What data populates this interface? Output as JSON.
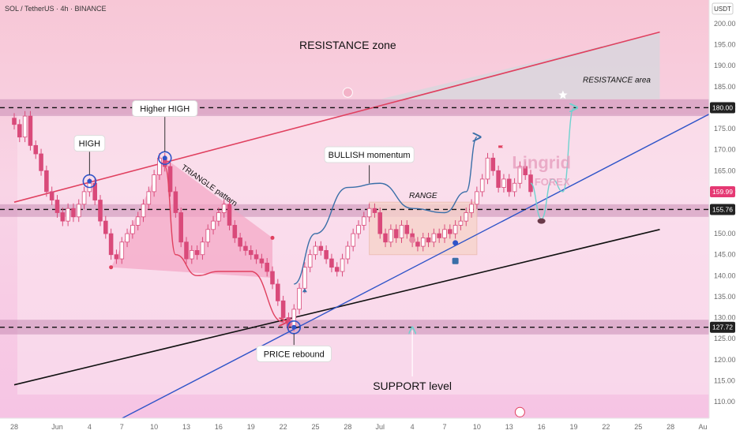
{
  "header": {
    "symbol_line": "SOL / TetherUS · 4h · BINANCE"
  },
  "currency_badge": "USDT",
  "colors": {
    "up_candle": "#d94a7a",
    "down_candle": "#d94a7a",
    "resistance_band": "#c98cb4",
    "support_band": "#c98cb4",
    "channel_upper": "#e0405f",
    "channel_lower": "#111111",
    "trend_line": "#2f54c8",
    "triangle_fill": "#f3a5c5",
    "projection": "#3a6fa8",
    "alt_projection": "#6fd2cf",
    "price_badge": "#e53973",
    "level_badge": "#222222"
  },
  "chart_data": {
    "type": "candlestick",
    "title": "",
    "y_axis": {
      "label": "USDT",
      "range": [
        105,
        202
      ],
      "ticks": [
        110,
        115,
        120,
        125,
        130,
        135,
        140,
        145,
        150,
        155,
        160,
        165,
        170,
        175,
        180,
        185,
        190,
        195,
        200
      ]
    },
    "x_axis": {
      "range": [
        "2025-05-28",
        "2025-08-01"
      ],
      "ticks": [
        {
          "date": "2025-05-28",
          "label": "28"
        },
        {
          "date": "2025-06-01",
          "label": "Jun"
        },
        {
          "date": "2025-06-04",
          "label": "4"
        },
        {
          "date": "2025-06-07",
          "label": "7"
        },
        {
          "date": "2025-06-10",
          "label": "10"
        },
        {
          "date": "2025-06-13",
          "label": "13"
        },
        {
          "date": "2025-06-16",
          "label": "16"
        },
        {
          "date": "2025-06-19",
          "label": "19"
        },
        {
          "date": "2025-06-22",
          "label": "22"
        },
        {
          "date": "2025-06-25",
          "label": "25"
        },
        {
          "date": "2025-06-28",
          "label": "28"
        },
        {
          "date": "2025-07-01",
          "label": "Jul"
        },
        {
          "date": "2025-07-04",
          "label": "4"
        },
        {
          "date": "2025-07-07",
          "label": "7"
        },
        {
          "date": "2025-07-10",
          "label": "10"
        },
        {
          "date": "2025-07-13",
          "label": "13"
        },
        {
          "date": "2025-07-16",
          "label": "16"
        },
        {
          "date": "2025-07-19",
          "label": "19"
        },
        {
          "date": "2025-07-22",
          "label": "22"
        },
        {
          "date": "2025-07-25",
          "label": "25"
        },
        {
          "date": "2025-07-28",
          "label": "28"
        },
        {
          "date": "2025-07-31",
          "label": "Au"
        }
      ]
    },
    "price_series": [
      {
        "date": "2025-05-28",
        "close": 176
      },
      {
        "date": "2025-05-28T12:00",
        "close": 173
      },
      {
        "date": "2025-05-29",
        "close": 178
      },
      {
        "date": "2025-05-29T12:00",
        "close": 171
      },
      {
        "date": "2025-05-30",
        "close": 169
      },
      {
        "date": "2025-05-30T12:00",
        "close": 165
      },
      {
        "date": "2025-05-31",
        "close": 160
      },
      {
        "date": "2025-05-31T12:00",
        "close": 158
      },
      {
        "date": "2025-06-01",
        "close": 155
      },
      {
        "date": "2025-06-01T12:00",
        "close": 153
      },
      {
        "date": "2025-06-02",
        "close": 156
      },
      {
        "date": "2025-06-02T12:00",
        "close": 154
      },
      {
        "date": "2025-06-03",
        "close": 157
      },
      {
        "date": "2025-06-03T12:00",
        "close": 160
      },
      {
        "date": "2025-06-04",
        "close": 162
      },
      {
        "date": "2025-06-04T12:00",
        "close": 158
      },
      {
        "date": "2025-06-05",
        "close": 153
      },
      {
        "date": "2025-06-05T12:00",
        "close": 150
      },
      {
        "date": "2025-06-06",
        "close": 145
      },
      {
        "date": "2025-06-06T12:00",
        "close": 144
      },
      {
        "date": "2025-06-07",
        "close": 148
      },
      {
        "date": "2025-06-07T12:00",
        "close": 150
      },
      {
        "date": "2025-06-08",
        "close": 152
      },
      {
        "date": "2025-06-08T12:00",
        "close": 154
      },
      {
        "date": "2025-06-09",
        "close": 157
      },
      {
        "date": "2025-06-09T12:00",
        "close": 160
      },
      {
        "date": "2025-06-10",
        "close": 164
      },
      {
        "date": "2025-06-10T12:00",
        "close": 168
      },
      {
        "date": "2025-06-11",
        "close": 166
      },
      {
        "date": "2025-06-11T12:00",
        "close": 160
      },
      {
        "date": "2025-06-12",
        "close": 155
      },
      {
        "date": "2025-06-12T12:00",
        "close": 148
      },
      {
        "date": "2025-06-13",
        "close": 144
      },
      {
        "date": "2025-06-13T12:00",
        "close": 146
      },
      {
        "date": "2025-06-14",
        "close": 145
      },
      {
        "date": "2025-06-14T12:00",
        "close": 148
      },
      {
        "date": "2025-06-15",
        "close": 151
      },
      {
        "date": "2025-06-15T12:00",
        "close": 153
      },
      {
        "date": "2025-06-16",
        "close": 155
      },
      {
        "date": "2025-06-16T12:00",
        "close": 157
      },
      {
        "date": "2025-06-17",
        "close": 152
      },
      {
        "date": "2025-06-17T12:00",
        "close": 149
      },
      {
        "date": "2025-06-18",
        "close": 147
      },
      {
        "date": "2025-06-18T12:00",
        "close": 146
      },
      {
        "date": "2025-06-19",
        "close": 145
      },
      {
        "date": "2025-06-19T12:00",
        "close": 144
      },
      {
        "date": "2025-06-20",
        "close": 143
      },
      {
        "date": "2025-06-20T12:00",
        "close": 141
      },
      {
        "date": "2025-06-21",
        "close": 138
      },
      {
        "date": "2025-06-21T12:00",
        "close": 134
      },
      {
        "date": "2025-06-22",
        "close": 130
      },
      {
        "date": "2025-06-22T12:00",
        "close": 128
      },
      {
        "date": "2025-06-23",
        "close": 132
      },
      {
        "date": "2025-06-23T12:00",
        "close": 137
      },
      {
        "date": "2025-06-24",
        "close": 142
      },
      {
        "date": "2025-06-24T12:00",
        "close": 145
      },
      {
        "date": "2025-06-25",
        "close": 147
      },
      {
        "date": "2025-06-25T12:00",
        "close": 146
      },
      {
        "date": "2025-06-26",
        "close": 144
      },
      {
        "date": "2025-06-26T12:00",
        "close": 142
      },
      {
        "date": "2025-06-27",
        "close": 141
      },
      {
        "date": "2025-06-27T12:00",
        "close": 144
      },
      {
        "date": "2025-06-28",
        "close": 147
      },
      {
        "date": "2025-06-28T12:00",
        "close": 150
      },
      {
        "date": "2025-06-29",
        "close": 152
      },
      {
        "date": "2025-06-29T12:00",
        "close": 154
      },
      {
        "date": "2025-06-30",
        "close": 156
      },
      {
        "date": "2025-06-30T12:00",
        "close": 155
      },
      {
        "date": "2025-07-01",
        "close": 150
      },
      {
        "date": "2025-07-01T12:00",
        "close": 148
      },
      {
        "date": "2025-07-02",
        "close": 151
      },
      {
        "date": "2025-07-02T12:00",
        "close": 149
      },
      {
        "date": "2025-07-03",
        "close": 152
      },
      {
        "date": "2025-07-03T12:00",
        "close": 150
      },
      {
        "date": "2025-07-04",
        "close": 148
      },
      {
        "date": "2025-07-04T12:00",
        "close": 147
      },
      {
        "date": "2025-07-05",
        "close": 149
      },
      {
        "date": "2025-07-05T12:00",
        "close": 148
      },
      {
        "date": "2025-07-06",
        "close": 150
      },
      {
        "date": "2025-07-06T12:00",
        "close": 149
      },
      {
        "date": "2025-07-07",
        "close": 151
      },
      {
        "date": "2025-07-07T12:00",
        "close": 150
      },
      {
        "date": "2025-07-08",
        "close": 152
      },
      {
        "date": "2025-07-08T12:00",
        "close": 153
      },
      {
        "date": "2025-07-09",
        "close": 155
      },
      {
        "date": "2025-07-09T12:00",
        "close": 157
      },
      {
        "date": "2025-07-10",
        "close": 160
      },
      {
        "date": "2025-07-10T12:00",
        "close": 163
      },
      {
        "date": "2025-07-11",
        "close": 168
      },
      {
        "date": "2025-07-11T12:00",
        "close": 165
      },
      {
        "date": "2025-07-12",
        "close": 161
      },
      {
        "date": "2025-07-12T12:00",
        "close": 163
      },
      {
        "date": "2025-07-13",
        "close": 160
      },
      {
        "date": "2025-07-13T12:00",
        "close": 162
      },
      {
        "date": "2025-07-14",
        "close": 166
      },
      {
        "date": "2025-07-14T12:00",
        "close": 164
      },
      {
        "date": "2025-07-15",
        "close": 160
      }
    ],
    "zones": [
      {
        "name": "resistance-band",
        "low": 178,
        "high": 182
      },
      {
        "name": "mid-band",
        "low": 154,
        "high": 157
      },
      {
        "name": "support-band",
        "low": 126,
        "high": 129.5
      }
    ],
    "price_lines": [
      {
        "label": "180.00",
        "price": 180,
        "style": "dashed",
        "badge": "dark"
      },
      {
        "label": "155.76",
        "price": 155.76,
        "style": "dashed",
        "badge": "dark"
      },
      {
        "label": "127.72",
        "price": 127.72,
        "style": "dashed",
        "badge": "dark"
      },
      {
        "label": "159.99",
        "price": 159.99,
        "style": "none",
        "badge": "current"
      }
    ],
    "trend_lines": [
      {
        "name": "channel-upper",
        "from": {
          "date": "2025-05-28",
          "price": 157.5
        },
        "to": {
          "date": "2025-07-27",
          "price": 198
        }
      },
      {
        "name": "channel-lower",
        "from": {
          "date": "2025-05-28",
          "price": 114
        },
        "to": {
          "date": "2025-07-27",
          "price": 151
        }
      },
      {
        "name": "rising-support",
        "from": {
          "date": "2025-06-07",
          "price": 106
        },
        "to": {
          "date": "2025-08-01",
          "price": 179
        }
      }
    ],
    "annotations": [
      {
        "id": "resistance-zone",
        "text": "RESISTANCE zone",
        "date": "2025-06-28",
        "price": 194,
        "style": "large"
      },
      {
        "id": "resistance-area",
        "text": "RESISTANCE area",
        "date": "2025-07-23",
        "price": 186,
        "style": "italic"
      },
      {
        "id": "higher-high",
        "text": "Higher HIGH",
        "date": "2025-06-11",
        "price": 179.8,
        "style": "box"
      },
      {
        "id": "high",
        "text": "HIGH",
        "date": "2025-06-04",
        "price": 171.5,
        "style": "box"
      },
      {
        "id": "bullish-momentum",
        "text": "BULLISH momentum",
        "date": "2025-06-30",
        "price": 168.8,
        "style": "box"
      },
      {
        "id": "range",
        "text": "RANGE",
        "date": "2025-07-05",
        "price": 158.5,
        "style": "italic"
      },
      {
        "id": "triangle-pattern",
        "text": "TRIANGLE pattern",
        "date": "2025-06-15",
        "price": 161,
        "style": "rotated"
      },
      {
        "id": "price-rebound",
        "text": "PRICE rebound",
        "date": "2025-06-23",
        "price": 121.4,
        "style": "box"
      },
      {
        "id": "support-level",
        "text": "SUPPORT level",
        "date": "2025-07-04",
        "price": 112.8,
        "style": "large"
      },
      {
        "id": "lingrid-brand",
        "text": "Lingrid",
        "date": "2025-07-16",
        "price": 165.5,
        "style": "watermark"
      },
      {
        "id": "forex-brand",
        "text": "FOREX",
        "date": "2025-07-17",
        "price": 161.5,
        "style": "watermark"
      }
    ],
    "circled_points": [
      {
        "id": "high",
        "date": "2025-06-04",
        "price": 162.5
      },
      {
        "id": "higher-high",
        "date": "2025-06-11",
        "price": 168
      },
      {
        "id": "price-rebound",
        "date": "2025-06-23",
        "price": 127.7
      }
    ],
    "range_box": {
      "from": "2025-06-30",
      "to": "2025-07-10",
      "low": 145,
      "high": 157.5
    },
    "triangle": [
      {
        "date": "2025-06-06",
        "price": 142
      },
      {
        "date": "2025-06-11",
        "price": 168
      },
      {
        "date": "2025-06-21",
        "price": 149
      },
      {
        "date": "2025-06-21",
        "price": 139.5
      }
    ],
    "projection_paths": [
      {
        "name": "triangle-breakdown",
        "points": [
          {
            "date": "2025-06-11",
            "price": 166
          },
          {
            "date": "2025-06-12",
            "price": 145
          },
          {
            "date": "2025-06-14",
            "price": 140
          },
          {
            "date": "2025-06-16",
            "price": 141
          },
          {
            "date": "2025-06-19",
            "price": 141
          },
          {
            "date": "2025-06-22",
            "price": 129
          }
        ]
      },
      {
        "name": "bullish-momentum-arc",
        "points": [
          {
            "date": "2025-06-23",
            "price": 138
          },
          {
            "date": "2025-06-25",
            "price": 150
          },
          {
            "date": "2025-06-28",
            "price": 161
          },
          {
            "date": "2025-07-01",
            "price": 162
          },
          {
            "date": "2025-07-04",
            "price": 156
          },
          {
            "date": "2025-07-07",
            "price": 155
          },
          {
            "date": "2025-07-09",
            "price": 160
          },
          {
            "date": "2025-07-10",
            "price": 173
          }
        ]
      },
      {
        "name": "pullback-and-rally",
        "points": [
          {
            "date": "2025-07-15",
            "price": 162
          },
          {
            "date": "2025-07-16",
            "price": 153.5
          },
          {
            "date": "2025-07-17",
            "price": 163
          },
          {
            "date": "2025-07-18",
            "price": 160
          },
          {
            "date": "2025-07-19",
            "price": 180
          }
        ]
      }
    ]
  }
}
